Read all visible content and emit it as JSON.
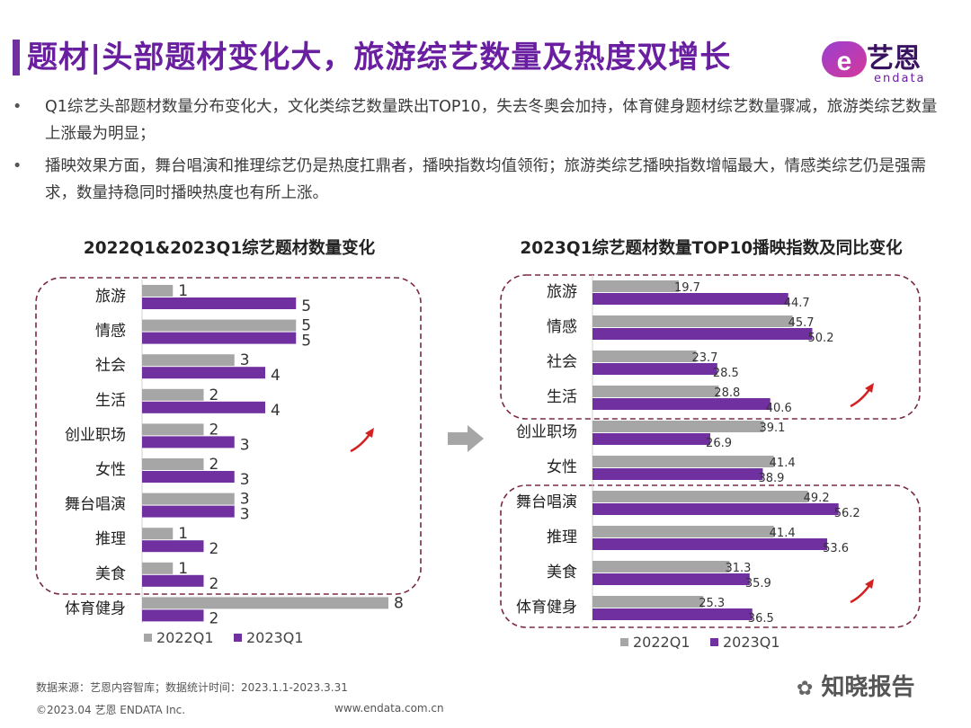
{
  "header": {
    "title": "题材|头部题材变化大，旅游综艺数量及热度双增长",
    "logo_cn": "艺恩",
    "logo_en": "endata"
  },
  "bullets": [
    "Q1综艺头部题材数量分布变化大，文化类综艺数量跌出TOP10，失去冬奥会加持，体育健身题材综艺数量骤减，旅游类综艺数量上涨最为明显；",
    "播映效果方面，舞台唱演和推理综艺仍是热度扛鼎者，播映指数均值领衔；旅游类综艺播映指数增幅最大，情感类综艺仍是强需求，数量持稳同时播映热度也有所上涨。"
  ],
  "bullet_marker": "•",
  "colors": {
    "s2022": "#a6a6a6",
    "s2023": "#7030a0",
    "title": "#6a1fa0",
    "box": "#7a2848",
    "arrow": "#d42020"
  },
  "footer": {
    "source": "数据来源：艺恩内容智库；数据统计时间：2023.1.1-2023.3.31",
    "copyright": "©2023.04 艺恩 ENDATA Inc.",
    "url": "www.endata.com.cn",
    "watermark": "知晓报告"
  },
  "chart_data": [
    {
      "type": "bar",
      "orientation": "horizontal",
      "title": "2022Q1&2023Q1综艺题材数量变化",
      "categories": [
        "旅游",
        "情感",
        "社会",
        "生活",
        "创业职场",
        "女性",
        "舞台唱演",
        "推理",
        "美食",
        "体育健身"
      ],
      "series": [
        {
          "name": "2022Q1",
          "values": [
            1,
            5,
            3,
            2,
            2,
            2,
            3,
            1,
            1,
            8
          ]
        },
        {
          "name": "2023Q1",
          "values": [
            5,
            5,
            4,
            4,
            3,
            3,
            3,
            2,
            2,
            2
          ]
        }
      ],
      "xlim": [
        0,
        8
      ],
      "legend": "bottom-left",
      "highlight_groups": [
        [
          "旅游",
          "美食"
        ]
      ]
    },
    {
      "type": "bar",
      "orientation": "horizontal",
      "title": "2023Q1综艺题材数量TOP10播映指数及同比变化",
      "categories": [
        "旅游",
        "情感",
        "社会",
        "生活",
        "创业职场",
        "女性",
        "舞台唱演",
        "推理",
        "美食",
        "体育健身"
      ],
      "series": [
        {
          "name": "2022Q1",
          "values": [
            19.7,
            45.7,
            23.7,
            28.8,
            39.1,
            41.4,
            49.2,
            41.4,
            31.3,
            25.3
          ]
        },
        {
          "name": "2023Q1",
          "values": [
            44.7,
            50.2,
            28.5,
            40.6,
            26.9,
            38.9,
            56.2,
            53.6,
            35.9,
            36.5
          ]
        }
      ],
      "xlim": [
        0,
        60
      ],
      "legend": "bottom-left",
      "highlight_groups": [
        [
          "旅游",
          "生活"
        ],
        [
          "舞台唱演",
          "体育健身"
        ]
      ]
    }
  ]
}
